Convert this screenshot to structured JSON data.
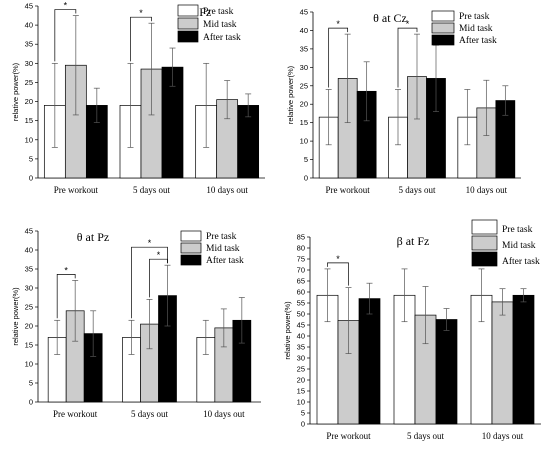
{
  "colors": {
    "pre": "#ffffff",
    "mid": "#cccccc",
    "after": "#000000",
    "axis": "#000000"
  },
  "chart_data": [
    {
      "type": "bar",
      "title": "θ at Fz",
      "ylabel": "relative power(%)",
      "xlabel": "",
      "ylim": [
        0,
        45
      ],
      "yticks": [
        0,
        5,
        10,
        15,
        20,
        25,
        30,
        35,
        40,
        45
      ],
      "categories": [
        "Pre workout",
        "5 days out",
        "10 days out"
      ],
      "series": [
        {
          "name": "Pre task",
          "values": [
            19,
            19,
            19
          ],
          "errors": [
            11,
            11,
            11
          ]
        },
        {
          "name": "Mid task",
          "values": [
            29.5,
            28.5,
            20.5
          ],
          "errors": [
            13,
            12,
            5
          ]
        },
        {
          "name": "After task",
          "values": [
            19,
            29,
            19
          ],
          "errors": [
            4.5,
            5,
            3
          ]
        }
      ],
      "significance": [
        {
          "category": 0,
          "from": 0,
          "to": 1,
          "level": 0,
          "label": "*"
        },
        {
          "category": 1,
          "from": 0,
          "to": 1,
          "level": 0,
          "label": "*"
        }
      ],
      "legend": "top-right"
    },
    {
      "type": "bar",
      "title": "θ at Cz",
      "ylabel": "relative power(%)",
      "xlabel": "",
      "ylim": [
        0,
        45
      ],
      "yticks": [
        0,
        5,
        10,
        15,
        20,
        25,
        30,
        35,
        40,
        45
      ],
      "categories": [
        "Pre workout",
        "5 days out",
        "10 days out"
      ],
      "series": [
        {
          "name": "Pre task",
          "values": [
            16.5,
            16.5,
            16.5
          ],
          "errors": [
            7.5,
            7.5,
            7.5
          ]
        },
        {
          "name": "Mid task",
          "values": [
            27,
            27.5,
            19
          ],
          "errors": [
            12,
            11.5,
            7.5
          ]
        },
        {
          "name": "After task",
          "values": [
            23.5,
            27,
            21
          ],
          "errors": [
            8,
            9,
            4
          ]
        }
      ],
      "significance": [
        {
          "category": 0,
          "from": 0,
          "to": 1,
          "level": 0,
          "label": "*"
        },
        {
          "category": 1,
          "from": 0,
          "to": 1,
          "level": 0,
          "label": "*"
        }
      ],
      "legend": "top-right"
    },
    {
      "type": "bar",
      "title": "θ at Pz",
      "ylabel": "relative power(%)",
      "xlabel": "",
      "ylim": [
        0,
        45
      ],
      "yticks": [
        0,
        5,
        10,
        15,
        20,
        25,
        30,
        35,
        40,
        45
      ],
      "categories": [
        "Pre workout",
        "5 days out",
        "10 days out"
      ],
      "series": [
        {
          "name": "Pre task",
          "values": [
            17,
            17,
            17
          ],
          "errors": [
            4.5,
            4.5,
            4.5
          ]
        },
        {
          "name": "Mid task",
          "values": [
            24,
            20.5,
            19.5
          ],
          "errors": [
            8,
            6.5,
            5
          ]
        },
        {
          "name": "After task",
          "values": [
            18,
            28,
            21.5
          ],
          "errors": [
            6,
            8,
            6
          ]
        }
      ],
      "significance": [
        {
          "category": 0,
          "from": 0,
          "to": 1,
          "level": 0,
          "label": "*"
        },
        {
          "category": 1,
          "from": 0,
          "to": 2,
          "level": 1,
          "label": "*"
        },
        {
          "category": 1,
          "from": 1,
          "to": 2,
          "level": 0,
          "label": "*"
        }
      ],
      "legend": "top-right"
    },
    {
      "type": "bar",
      "title": "β at Fz",
      "ylabel": "relative power(%)",
      "xlabel": "",
      "ylim": [
        0,
        85
      ],
      "yticks": [
        0,
        5,
        10,
        15,
        20,
        25,
        30,
        35,
        40,
        45,
        50,
        55,
        60,
        65,
        70,
        75,
        80,
        85
      ],
      "categories": [
        "Pre workout",
        "5 days out",
        "10 days out"
      ],
      "series": [
        {
          "name": "Pre task",
          "values": [
            58.5,
            58.5,
            58.5
          ],
          "errors": [
            12,
            12,
            12
          ]
        },
        {
          "name": "Mid task",
          "values": [
            47,
            49.5,
            55.5
          ],
          "errors": [
            15,
            13,
            6
          ]
        },
        {
          "name": "After task",
          "values": [
            57,
            47.5,
            58.5
          ],
          "errors": [
            7,
            5,
            3
          ]
        }
      ],
      "significance": [
        {
          "category": 0,
          "from": 0,
          "to": 1,
          "level": 0,
          "label": "*"
        }
      ],
      "legend": "top-right"
    }
  ]
}
